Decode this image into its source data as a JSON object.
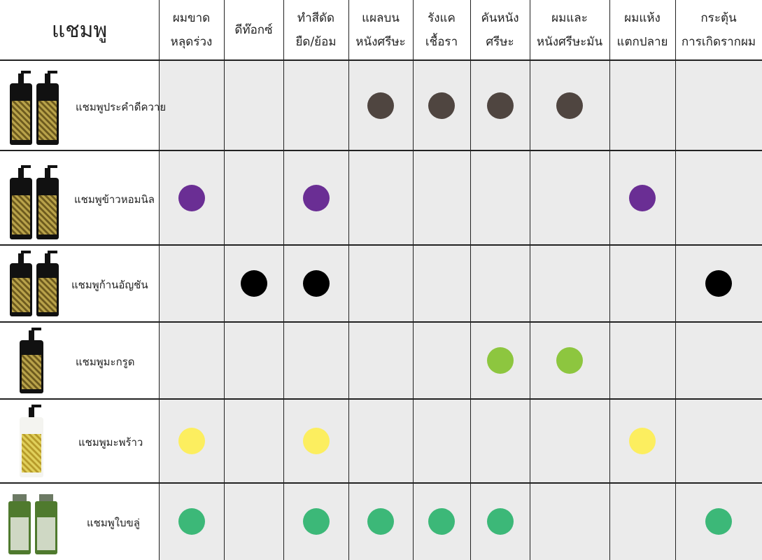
{
  "corner_label": "แชมพู",
  "columns": [
    [
      "ผมขาด",
      "หลุดร่วง"
    ],
    [
      "ดีท๊อกซ์"
    ],
    [
      "ทำสีดัด",
      "ยืด/ย้อม"
    ],
    [
      "แผลบน",
      "หนังศรีษะ"
    ],
    [
      "รังแค",
      "เชื้อรา"
    ],
    [
      "คันหนัง",
      "ศรีษะ"
    ],
    [
      "ผมและ",
      "หนังศรีษะมัน"
    ],
    [
      "ผมแห้ง",
      "แตกปลาย"
    ],
    [
      "กระตุ้น",
      "การเกิดรากผม"
    ]
  ],
  "products": [
    {
      "name": "แชมพูประคำดีควาย",
      "icon": "black-pump-bottle-pair-icon",
      "color": "#4f4540",
      "marks": [
        4,
        5,
        6,
        7
      ]
    },
    {
      "name": "แชมพูข้าวหอมนิล",
      "icon": "black-pump-bottle-pair-icon",
      "color": "#6a2e94",
      "marks": [
        1,
        3,
        8
      ]
    },
    {
      "name": "แชมพูก้านอัญชัน",
      "icon": "black-pump-bottle-pair-icon",
      "color": "#000000",
      "marks": [
        2,
        3,
        9
      ]
    },
    {
      "name": "แชมพูมะกรูด",
      "icon": "black-pump-bottle-icon",
      "color": "#8dc63f",
      "marks": [
        6,
        7
      ]
    },
    {
      "name": "แชมพูมะพร้าว",
      "icon": "white-pump-bottle-icon",
      "color": "#fcee5f",
      "marks": [
        1,
        3,
        8
      ]
    },
    {
      "name": "แชมพูใบขลู่",
      "icon": "green-bottle-pair-icon",
      "color": "#3cb878",
      "marks": [
        1,
        3,
        4,
        5,
        6,
        9
      ]
    }
  ]
}
